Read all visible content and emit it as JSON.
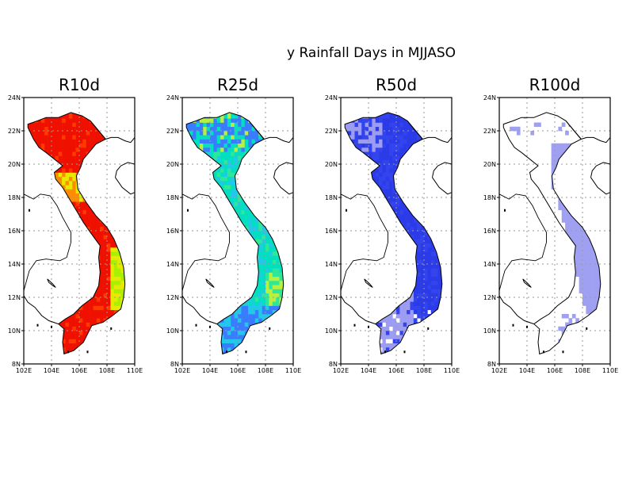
{
  "figure": {
    "title": "y Rainfall Days in MJJASO"
  },
  "map_data": {
    "x_ticks": [
      "102E",
      "104E",
      "106E",
      "108E",
      "110E"
    ],
    "y_ticks": [
      "8N",
      "10N",
      "12N",
      "14N",
      "16N",
      "18N",
      "20N",
      "22N",
      "24N"
    ],
    "lon_range": [
      102,
      110
    ],
    "lat_range": [
      8,
      24
    ],
    "panels": [
      {
        "title": "R10d",
        "palette": [
          "#f01000",
          "#ff3a00",
          "#ff8c00",
          "#e6ea00",
          "#a8f000"
        ],
        "coverage": "all"
      },
      {
        "title": "R25d",
        "palette": [
          "#00e0c0",
          "#22c8e8",
          "#2ee89a",
          "#3a7cff",
          "#b8f040"
        ],
        "coverage": "all"
      },
      {
        "title": "R50d",
        "palette": [
          "#2b3be8",
          "#3344ee",
          "#9c9cf2"
        ],
        "coverage": "most"
      },
      {
        "title": "R100d",
        "palette": [
          "#a0a0f2"
        ],
        "coverage": "central"
      }
    ]
  },
  "colors": {
    "frame": "#000000",
    "gridline": "#9a9a9a"
  }
}
